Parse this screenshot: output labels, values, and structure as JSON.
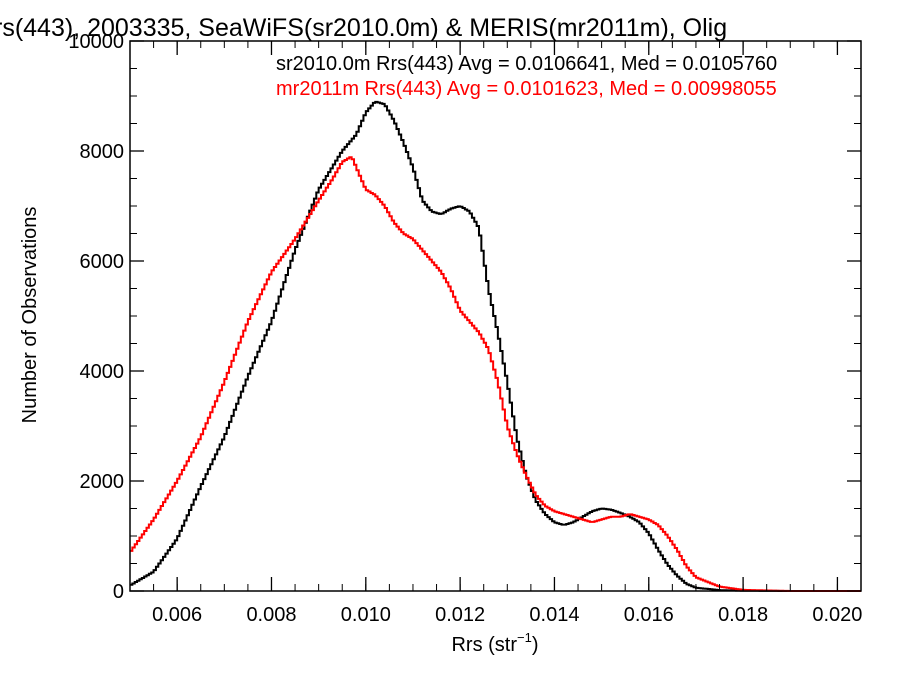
{
  "chart_data": {
    "type": "line",
    "title": "rs(443), 2003335, SeaWiFS(sr2010.0m) & MERIS(mr2011m), Olig",
    "xlabel": "Rrs (str",
    "xlabel_sup": "−1",
    "xlabel_close": ")",
    "ylabel": "Number of Observations",
    "xlim": [
      0.005,
      0.0205
    ],
    "ylim": [
      0,
      10000
    ],
    "x_tick_values": [
      0.006,
      0.008,
      0.01,
      0.012,
      0.014,
      0.016,
      0.018,
      0.02
    ],
    "x_tick_labels": [
      "0.006",
      "0.008",
      "0.010",
      "0.012",
      "0.014",
      "0.016",
      "0.018",
      "0.020"
    ],
    "y_tick_values": [
      0,
      2000,
      4000,
      6000,
      8000,
      10000
    ],
    "y_tick_labels": [
      "0",
      "2000",
      "4000",
      "6000",
      "8000",
      "10000"
    ],
    "x_minor_step": 0.0005,
    "y_minor_step": 500,
    "grid": false,
    "legend_position": "top-right",
    "series": [
      {
        "name": "sr2010.0m Rrs(443) Avg = 0.0106641, Med = 0.0105760",
        "color": "#000000",
        "x": [
          0.005,
          0.0055,
          0.006,
          0.0065,
          0.007,
          0.0075,
          0.008,
          0.0085,
          0.009,
          0.0095,
          0.0098,
          0.01,
          0.0102,
          0.0104,
          0.0106,
          0.0108,
          0.011,
          0.0112,
          0.0114,
          0.0116,
          0.0118,
          0.012,
          0.0122,
          0.0124,
          0.0126,
          0.0128,
          0.013,
          0.0132,
          0.0134,
          0.0136,
          0.0138,
          0.014,
          0.0142,
          0.0144,
          0.0146,
          0.0148,
          0.015,
          0.0152,
          0.0154,
          0.0156,
          0.0158,
          0.016,
          0.0162,
          0.0164,
          0.0166,
          0.0168,
          0.017,
          0.0175,
          0.018,
          0.019,
          0.02,
          0.0205
        ],
        "y": [
          100,
          350,
          950,
          1900,
          2800,
          3900,
          4900,
          6200,
          7300,
          8000,
          8300,
          8700,
          8900,
          8850,
          8550,
          8150,
          7700,
          7100,
          6900,
          6850,
          6950,
          7000,
          6900,
          6600,
          5500,
          4700,
          3800,
          2800,
          2100,
          1650,
          1400,
          1250,
          1200,
          1250,
          1350,
          1450,
          1500,
          1480,
          1420,
          1350,
          1250,
          1050,
          750,
          480,
          280,
          130,
          60,
          15,
          5,
          0,
          0,
          0
        ]
      },
      {
        "name": "mr2011m Rrs(443) Avg = 0.0101623, Med = 0.00998055",
        "color": "#ff0000",
        "x": [
          0.005,
          0.0055,
          0.006,
          0.0065,
          0.007,
          0.0075,
          0.008,
          0.0085,
          0.009,
          0.0093,
          0.0095,
          0.0097,
          0.0099,
          0.01,
          0.0102,
          0.0104,
          0.0106,
          0.0108,
          0.011,
          0.0112,
          0.0114,
          0.0116,
          0.0118,
          0.012,
          0.0122,
          0.0124,
          0.0126,
          0.0128,
          0.013,
          0.0132,
          0.0134,
          0.0136,
          0.0138,
          0.014,
          0.0142,
          0.0144,
          0.0146,
          0.0148,
          0.015,
          0.0152,
          0.0154,
          0.0156,
          0.0158,
          0.016,
          0.0162,
          0.0164,
          0.0166,
          0.0168,
          0.017,
          0.0175,
          0.018,
          0.019,
          0.02,
          0.0205
        ],
        "y": [
          700,
          1300,
          2000,
          2800,
          3800,
          4900,
          5800,
          6400,
          7100,
          7500,
          7800,
          7900,
          7500,
          7300,
          7200,
          7000,
          6700,
          6500,
          6400,
          6200,
          6000,
          5800,
          5500,
          5100,
          4900,
          4700,
          4400,
          3800,
          3000,
          2500,
          2100,
          1750,
          1550,
          1450,
          1400,
          1350,
          1300,
          1250,
          1300,
          1350,
          1350,
          1400,
          1350,
          1300,
          1200,
          1000,
          750,
          450,
          250,
          80,
          20,
          0,
          0,
          0
        ]
      }
    ]
  }
}
